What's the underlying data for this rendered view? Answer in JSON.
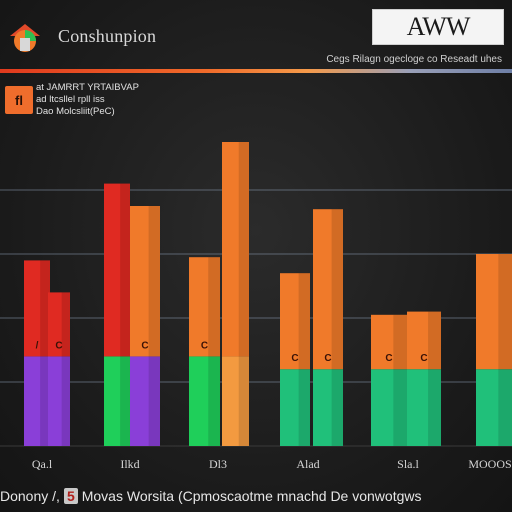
{
  "header": {
    "title": "Conshunpion",
    "brand": "AWW",
    "subtitle": "Cegs Rilagn ogecloge co Reseadt uhes"
  },
  "legend": {
    "swatch_text": "fl",
    "lines": [
      "at JAMRRT YRTAIBVAP",
      "ad ltcsllel rpll iss",
      "Dao Molcsliit(PeC)"
    ]
  },
  "footer": {
    "left": "Donony /,",
    "badge": "5",
    "right": "Movas Worsita (Cpmoscaotme mnachd De vonwotgws"
  },
  "colors": {
    "red": "#e02a22",
    "orange": "#f07a2a",
    "orange_light": "#f39a40",
    "green": "#1fcf5a",
    "teal": "#20c07a",
    "purple": "#8a3fd8",
    "grid": "#8a9ab0"
  },
  "chart_data": {
    "type": "bar",
    "categories": [
      "Qa.l",
      "Ilkd",
      "Dl3",
      "Alad",
      "Sla.l",
      "MOOOS"
    ],
    "ylim": [
      0,
      100
    ],
    "grid_values": [
      20,
      40,
      60,
      80
    ],
    "bars": [
      {
        "category": 0,
        "total": 58,
        "split": 28,
        "top": "red",
        "bottom": "purple",
        "label": "/"
      },
      {
        "category": 0,
        "total": 48,
        "split": 28,
        "top": "red",
        "bottom": "purple",
        "label": "C"
      },
      {
        "category": 1,
        "total": 82,
        "split": 28,
        "top": "red",
        "bottom": "green",
        "label": ""
      },
      {
        "category": 1,
        "total": 75,
        "split": 28,
        "top": "orange",
        "bottom": "purple",
        "label": "C"
      },
      {
        "category": 2,
        "total": 59,
        "split": 28,
        "top": "orange",
        "bottom": "green",
        "label": "C"
      },
      {
        "category": 2,
        "total": 95,
        "split": 28,
        "top": "orange",
        "bottom": "orange_light",
        "label": ""
      },
      {
        "category": 3,
        "total": 54,
        "split": 24,
        "top": "orange",
        "bottom": "teal",
        "label": "C"
      },
      {
        "category": 3,
        "total": 74,
        "split": 24,
        "top": "orange",
        "bottom": "teal",
        "label": "C"
      },
      {
        "category": 4,
        "total": 41,
        "split": 24,
        "top": "orange",
        "bottom": "teal",
        "label": "C"
      },
      {
        "category": 4,
        "total": 42,
        "split": 24,
        "top": "orange",
        "bottom": "teal",
        "label": "C"
      },
      {
        "category": 5,
        "total": 60,
        "split": 24,
        "top": "orange",
        "bottom": "teal",
        "label": ""
      }
    ]
  }
}
